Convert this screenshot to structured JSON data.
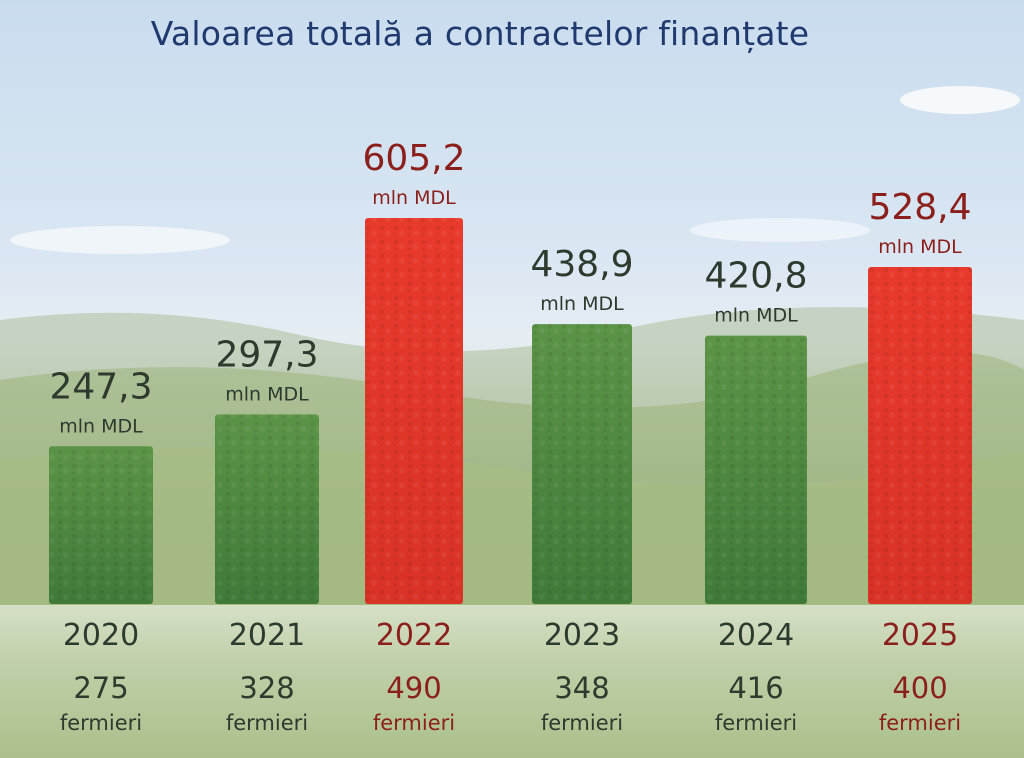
{
  "title": "Valoarea totală a contractelor finanțate",
  "colors": {
    "green_bar": "#4f8a3e",
    "red_bar": "#e5392b",
    "green_text": "#2c3b2e",
    "red_text": "#8b1f1c",
    "title": "#203a6e"
  },
  "chart_data": {
    "type": "bar",
    "title": "Valoarea totală a contractelor finanțate",
    "xlabel": "",
    "ylabel": "",
    "ylim": [
      0,
      700
    ],
    "grid": false,
    "unit_label": "mln MDL",
    "farmers_label": "fermieri",
    "categories": [
      "2020",
      "2021",
      "2022",
      "2023",
      "2024",
      "2025"
    ],
    "values": [
      247.3,
      297.3,
      605.2,
      438.9,
      420.8,
      528.4
    ],
    "value_labels": [
      "247,3",
      "297,3",
      "605,2",
      "438,9",
      "420,8",
      "528,4"
    ],
    "farmers": [
      275,
      328,
      490,
      348,
      416,
      400
    ],
    "highlight": [
      false,
      false,
      true,
      false,
      false,
      true
    ]
  }
}
